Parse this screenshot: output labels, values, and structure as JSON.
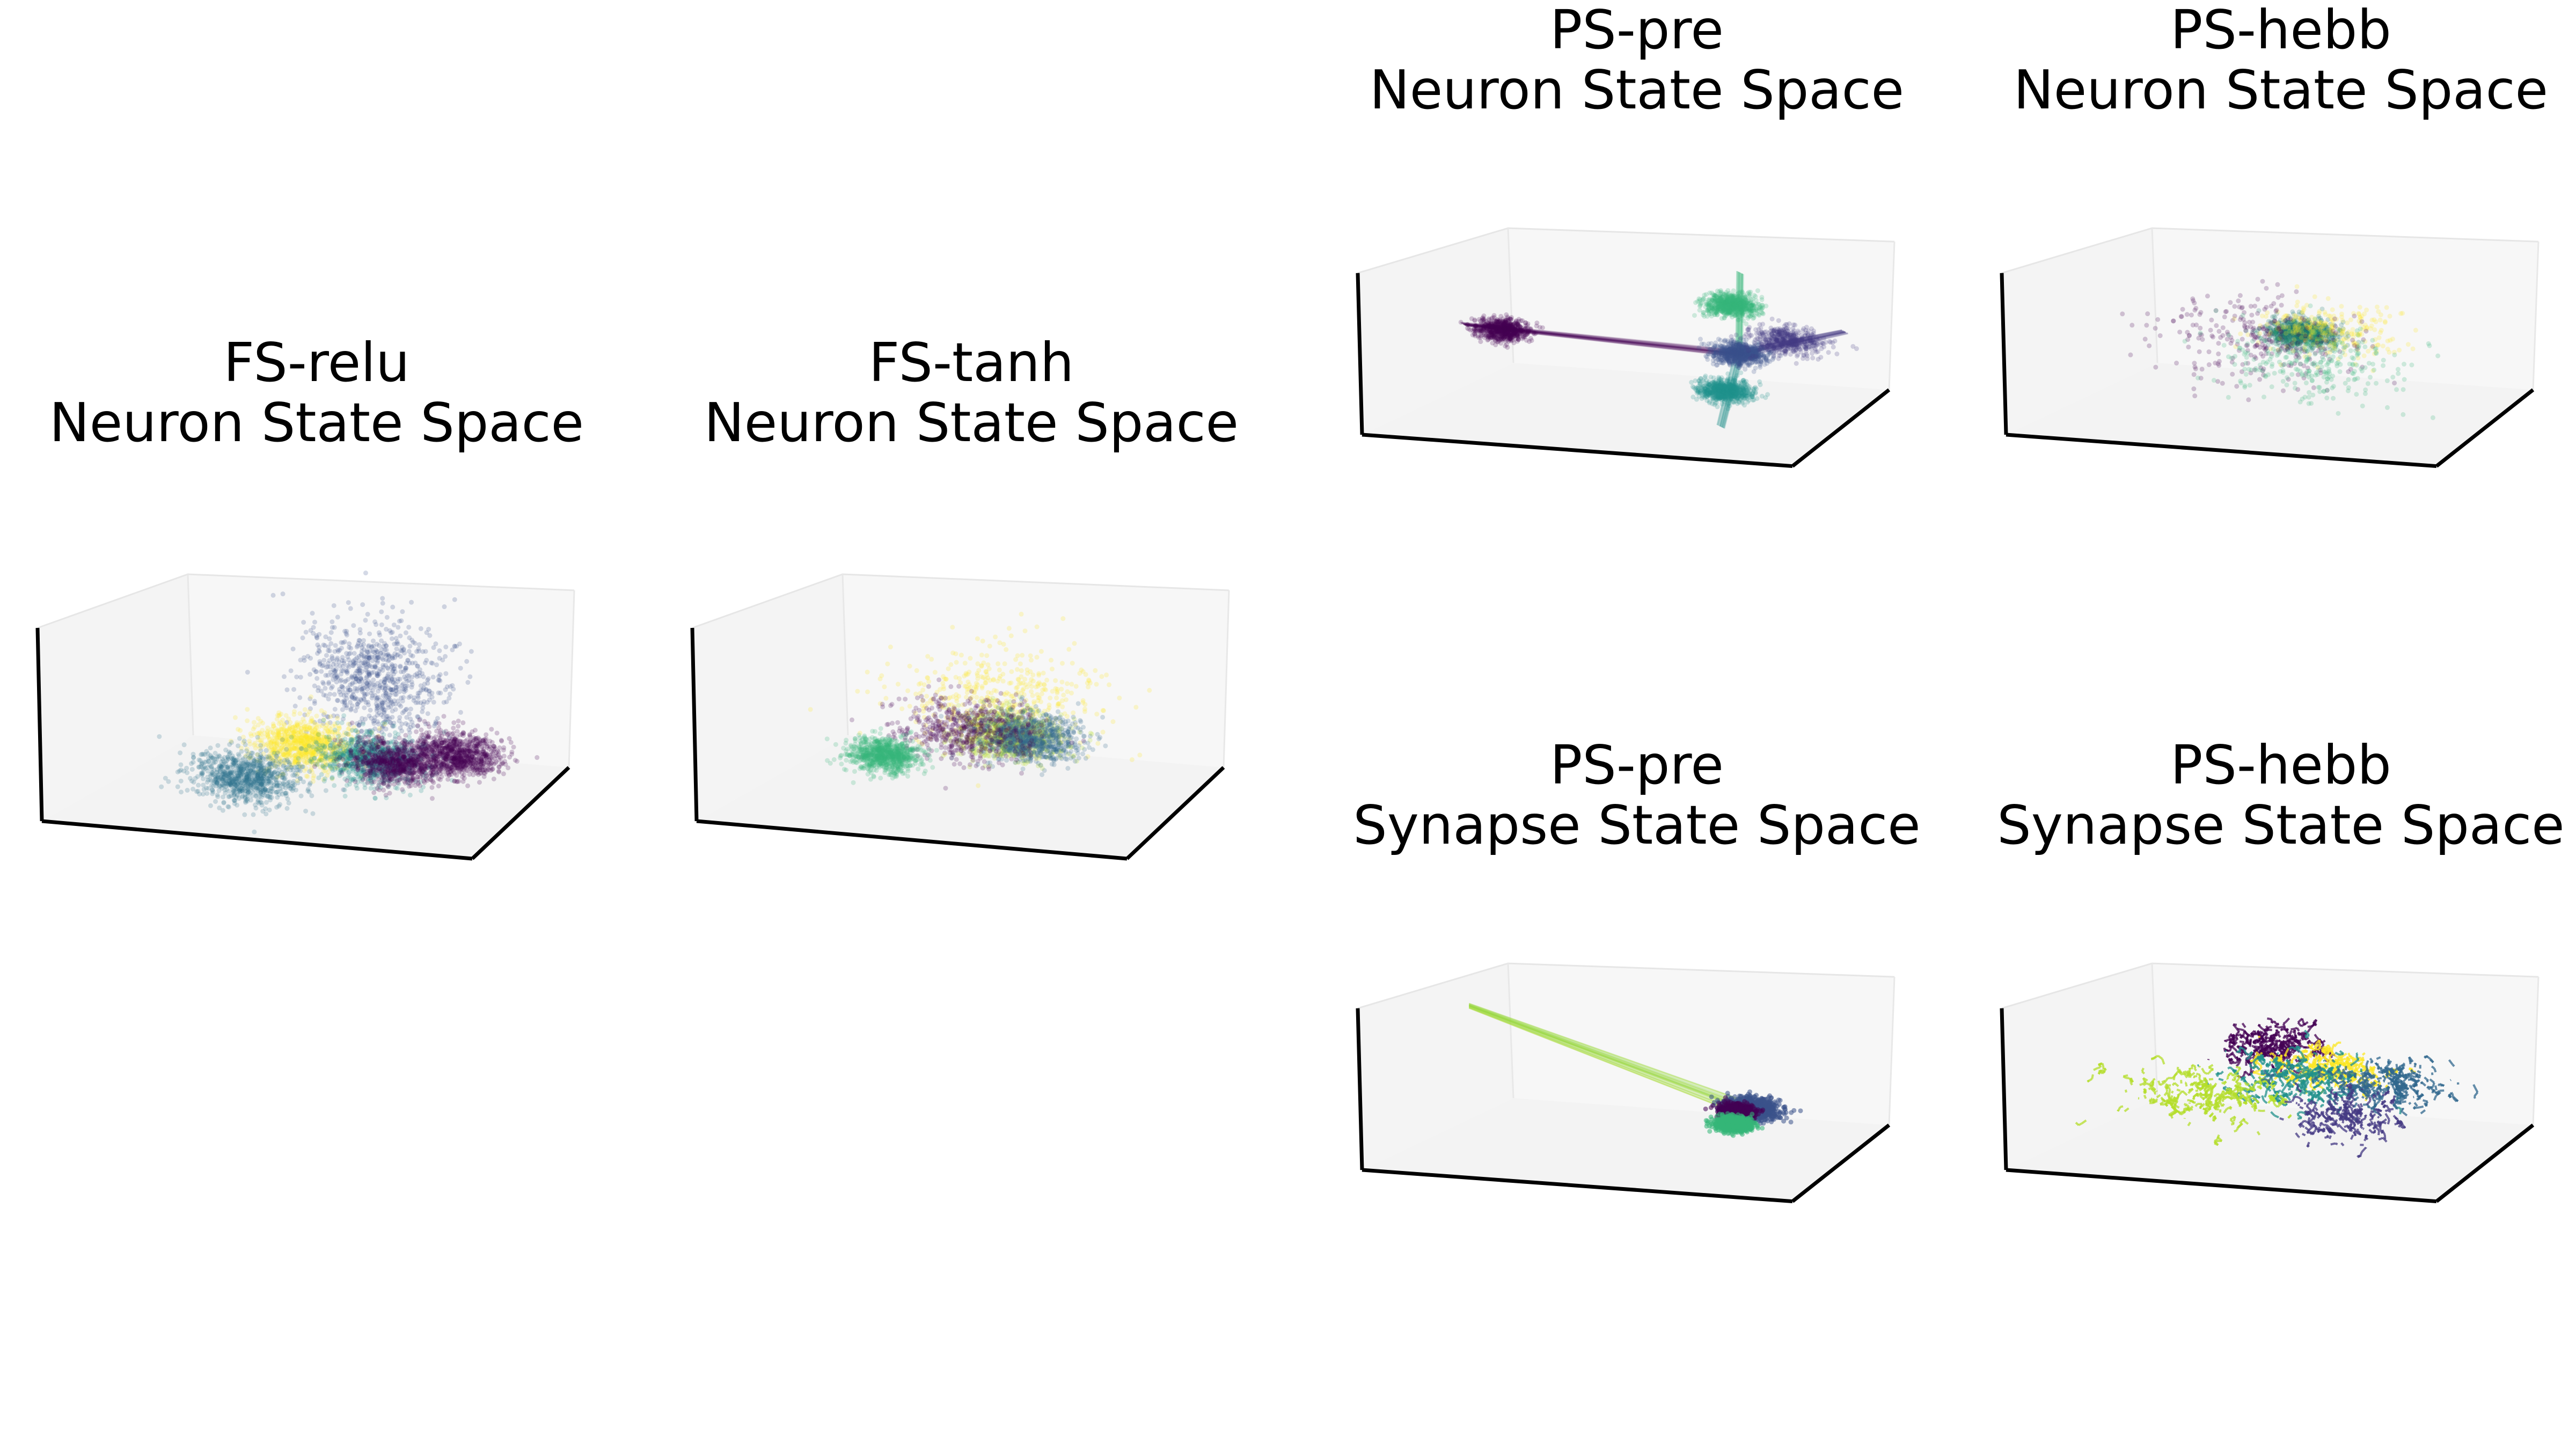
{
  "figure": {
    "background": "#ffffff",
    "pane_color": "#f2f2f2",
    "edge_color": "#000000",
    "colormap": "viridis"
  },
  "chart_data": [
    {
      "type": "scatter3d",
      "title_line1": "FS-relu",
      "title_line2": "Neuron State Space",
      "grid": false,
      "ticks": false,
      "clusters": [
        {
          "x": 0.55,
          "y": 0.72,
          "z": 0.62,
          "color": "#3b528b",
          "spread": 0.08,
          "density": 0.9
        },
        {
          "x": 0.45,
          "y": 0.42,
          "z": 0.35,
          "color": "#fde725",
          "spread": 0.06,
          "density": 1.0
        },
        {
          "x": 0.6,
          "y": 0.45,
          "z": 0.3,
          "color": "#21918c",
          "spread": 0.06,
          "density": 1.0
        },
        {
          "x": 0.66,
          "y": 0.44,
          "z": 0.3,
          "color": "#440154",
          "spread": 0.05,
          "density": 0.9
        },
        {
          "x": 0.8,
          "y": 0.45,
          "z": 0.36,
          "color": "#440154",
          "spread": 0.05,
          "density": 1.0
        },
        {
          "x": 0.35,
          "y": 0.25,
          "z": 0.22,
          "color": "#2c728e",
          "spread": 0.06,
          "density": 1.0
        }
      ]
    },
    {
      "type": "scatter3d",
      "title_line1": "FS-tanh",
      "title_line2": "Neuron State Space",
      "grid": false,
      "ticks": false,
      "clusters": [
        {
          "x": 0.5,
          "y": 0.58,
          "z": 0.55,
          "color": "#fde725",
          "spread": 0.12,
          "density": 0.5
        },
        {
          "x": 0.55,
          "y": 0.5,
          "z": 0.4,
          "color": "#b5de2b",
          "spread": 0.06,
          "density": 0.9
        },
        {
          "x": 0.6,
          "y": 0.48,
          "z": 0.4,
          "color": "#31688e",
          "spread": 0.06,
          "density": 1.0
        },
        {
          "x": 0.45,
          "y": 0.45,
          "z": 0.42,
          "color": "#440154",
          "spread": 0.08,
          "density": 0.6
        },
        {
          "x": 0.3,
          "y": 0.32,
          "z": 0.3,
          "color": "#35b779",
          "spread": 0.04,
          "density": 1.0
        }
      ]
    },
    {
      "type": "scatter3d",
      "title_line1": "PS-pre",
      "title_line2": "Neuron State Space",
      "grid": false,
      "ticks": false,
      "clusters": [
        {
          "x": 0.15,
          "y": 0.5,
          "z": 0.52,
          "color": "#440154",
          "spread": 0.03,
          "density": 0.8
        },
        {
          "x": 0.65,
          "y": 0.65,
          "z": 0.72,
          "color": "#35b779",
          "spread": 0.03,
          "density": 0.9
        },
        {
          "x": 0.7,
          "y": 0.35,
          "z": 0.3,
          "color": "#21918c",
          "spread": 0.03,
          "density": 0.9
        },
        {
          "x": 0.7,
          "y": 0.5,
          "z": 0.48,
          "color": "#3b528b",
          "spread": 0.03,
          "density": 1.0
        },
        {
          "x": 0.8,
          "y": 0.55,
          "z": 0.56,
          "color": "#443983",
          "spread": 0.04,
          "density": 0.6
        }
      ]
    },
    {
      "type": "scatter3d",
      "title_line1": "PS-hebb",
      "title_line2": "Neuron State Space",
      "grid": false,
      "ticks": false,
      "clusters": [
        {
          "x": 0.5,
          "y": 0.55,
          "z": 0.55,
          "color": "#1f7a6e",
          "spread": 0.04,
          "density": 1.0
        },
        {
          "x": 0.55,
          "y": 0.55,
          "z": 0.58,
          "color": "#fde725",
          "spread": 0.08,
          "density": 0.3
        },
        {
          "x": 0.4,
          "y": 0.5,
          "z": 0.52,
          "color": "#440154",
          "spread": 0.12,
          "density": 0.3
        },
        {
          "x": 0.55,
          "y": 0.45,
          "z": 0.4,
          "color": "#35b779",
          "spread": 0.1,
          "density": 0.3
        }
      ]
    },
    {
      "type": "line3d",
      "title_line1": "PS-pre",
      "title_line2": "Synapse State Space",
      "grid": false,
      "ticks": false,
      "clusters": [
        {
          "x": 0.75,
          "y": 0.4,
          "z": 0.4,
          "color": "#3b528b",
          "spread": 0.03,
          "density": 1.0
        },
        {
          "x": 0.72,
          "y": 0.38,
          "z": 0.38,
          "color": "#440154",
          "spread": 0.02,
          "density": 1.0
        },
        {
          "x": 0.73,
          "y": 0.3,
          "z": 0.33,
          "color": "#35b779",
          "spread": 0.02,
          "density": 1.0
        }
      ]
    },
    {
      "type": "line3d",
      "title_line1": "PS-hebb",
      "title_line2": "Synapse State Space",
      "grid": false,
      "ticks": false,
      "clusters": [
        {
          "x": 0.4,
          "y": 0.7,
          "z": 0.62,
          "color": "#440154",
          "spread": 0.06,
          "density": 0.8
        },
        {
          "x": 0.55,
          "y": 0.6,
          "z": 0.55,
          "color": "#fde725",
          "spread": 0.06,
          "density": 0.8
        },
        {
          "x": 0.5,
          "y": 0.5,
          "z": 0.5,
          "color": "#21918c",
          "spread": 0.08,
          "density": 0.8
        },
        {
          "x": 0.3,
          "y": 0.4,
          "z": 0.4,
          "color": "#b5de2b",
          "spread": 0.08,
          "density": 0.8
        },
        {
          "x": 0.7,
          "y": 0.55,
          "z": 0.5,
          "color": "#31688e",
          "spread": 0.07,
          "density": 0.8
        },
        {
          "x": 0.65,
          "y": 0.35,
          "z": 0.35,
          "color": "#443983",
          "spread": 0.07,
          "density": 0.6
        }
      ]
    }
  ]
}
